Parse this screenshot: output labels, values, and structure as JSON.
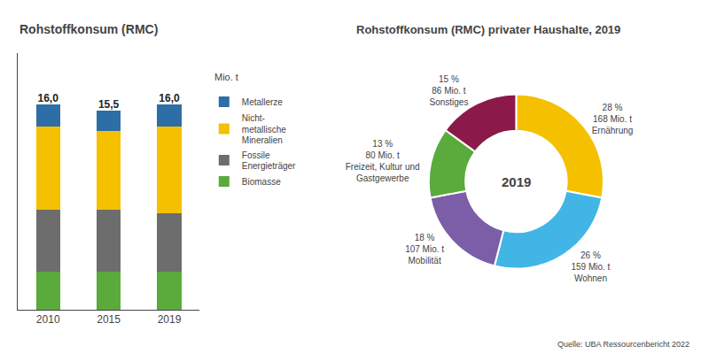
{
  "chart_data": [
    {
      "type": "bar",
      "stacked": true,
      "title": "Rohstoffkonsum (RMC)",
      "annotations": [
        "Mio. t"
      ],
      "categories": [
        "2010",
        "2015",
        "2019"
      ],
      "series": [
        {
          "name": "Biomasse",
          "color": "#5aaa3c",
          "values": [
            3.0,
            3.0,
            3.0
          ]
        },
        {
          "name": "Fossile\nEnergieträger",
          "color": "#6d6d6d",
          "values": [
            4.8,
            4.8,
            4.5
          ]
        },
        {
          "name": "Nicht-\nmetallische\nMineralien",
          "color": "#f5c000",
          "values": [
            6.5,
            6.1,
            6.8
          ]
        },
        {
          "name": "Metallerze",
          "color": "#2e6ea6",
          "values": [
            1.7,
            1.6,
            1.7
          ]
        }
      ],
      "totals": [
        16.0,
        15.5,
        16.0
      ],
      "total_labels": [
        "16,0",
        "15,5",
        "16,0"
      ],
      "ylim": [
        0,
        20
      ],
      "tick_labels": "x",
      "grid": false,
      "legend": "upper right"
    },
    {
      "type": "donut",
      "title": "Rohstoffkonsum (RMC) privater Haushalte, 2019",
      "values": [
        28,
        26,
        18,
        13,
        15
      ],
      "value_labels": [
        "28 %\n168 Mio. t\nErnährung",
        "26 %\n159 Mio. t\nWohnen",
        "18 %\n107 Mio. t\nMobilität",
        "13 %\n80 Mio. t\nFreizeit, Kultur und\nGastgewerbe",
        "15 %\n86 Mio. t\nSonstiges"
      ],
      "colors": [
        "#f5c000",
        "#41b6e6",
        "#7b5ea7",
        "#5aaa3c",
        "#8b1a4a"
      ],
      "annotations": [
        "2019"
      ],
      "source": "Quelle: UBA Ressourcenbericht 2022"
    }
  ]
}
